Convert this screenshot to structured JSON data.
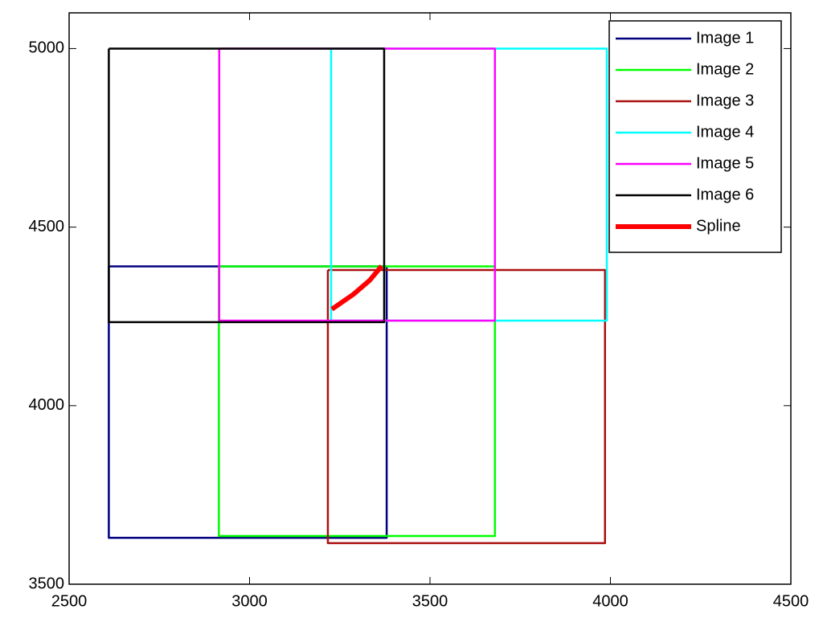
{
  "chart_data": {
    "type": "line",
    "xlim": [
      2500,
      4500
    ],
    "xticks": [
      2500,
      3000,
      3500,
      4000,
      4500
    ],
    "ylim": [
      3500,
      5100
    ],
    "yticks": [
      3500,
      4000,
      4500,
      5000
    ],
    "legend": "northeast",
    "series": [
      {
        "name": "Image 1",
        "color": "#00007f",
        "width": 2.5,
        "x": [
          2610,
          3380,
          3380,
          2610,
          2610
        ],
        "values": [
          4390,
          4390,
          3630,
          3630,
          4390
        ]
      },
      {
        "name": "Image 2",
        "color": "#00ff00",
        "width": 2.5,
        "x": [
          2915,
          3680,
          3680,
          2915,
          2915
        ],
        "values": [
          4390,
          4390,
          3635,
          3635,
          4390
        ]
      },
      {
        "name": "Image 3",
        "color": "#aa1111",
        "width": 2.5,
        "x": [
          3217,
          3985,
          3985,
          3217,
          3217
        ],
        "values": [
          4380,
          4380,
          3615,
          3615,
          4380
        ]
      },
      {
        "name": "Image 4",
        "color": "#00ffff",
        "width": 2.5,
        "x": [
          3226,
          3990,
          3990,
          3226,
          3226
        ],
        "values": [
          5000,
          5000,
          4238,
          4238,
          5000
        ]
      },
      {
        "name": "Image 5",
        "color": "#ff00ff",
        "width": 2.5,
        "x": [
          2916,
          3680,
          3680,
          2916,
          2916
        ],
        "values": [
          5000,
          5000,
          4238,
          4238,
          5000
        ]
      },
      {
        "name": "Image 6",
        "color": "#000000",
        "width": 2.5,
        "x": [
          2610,
          3373,
          3373,
          2610,
          2610
        ],
        "values": [
          5000,
          5000,
          4234,
          4234,
          5000
        ]
      },
      {
        "name": "Spline",
        "color": "#ff0000",
        "width": 6,
        "x": [
          3228,
          3288,
          3333,
          3366
        ],
        "values": [
          4270,
          4312,
          4351,
          4391
        ]
      }
    ]
  }
}
